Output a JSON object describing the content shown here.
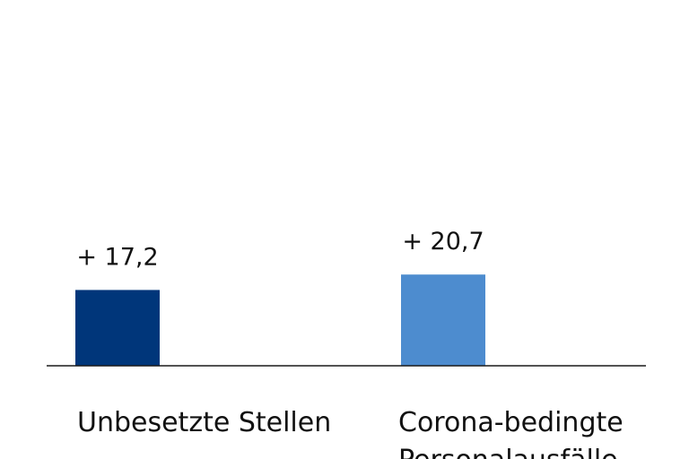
{
  "chart_data": {
    "type": "bar",
    "categories": [
      "Unbesetzte Stellen",
      "Corona-bedingte Personalausfälle"
    ],
    "category_lines": [
      [
        "Unbesetzte Stellen"
      ],
      [
        "Corona-bedingte",
        "Personalausfälle"
      ]
    ],
    "values": [
      17.2,
      20.7
    ],
    "value_labels": [
      "+ 17,2",
      "+ 20,7"
    ],
    "colors": [
      "#00367a",
      "#4d8ccf"
    ],
    "baseline_color": "#1a1a1a",
    "ylim": [
      0,
      83
    ],
    "grid": false,
    "legend": "none"
  }
}
